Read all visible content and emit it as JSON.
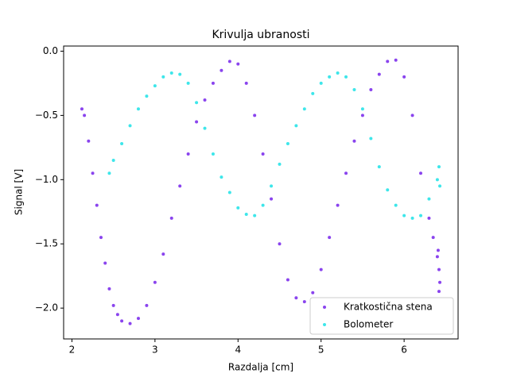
{
  "chart_data": {
    "type": "scatter",
    "title": "Krivulja ubranosti",
    "x_label": "Razdalja [cm]",
    "y_label": "Signal [V]",
    "xlim": [
      1.9,
      6.65
    ],
    "ylim": [
      -2.24,
      0.04
    ],
    "xticks": [
      2,
      3,
      4,
      5,
      6
    ],
    "yticks": [
      {
        "value": 0,
        "label": "0.0"
      },
      {
        "value": -0.5,
        "label": "−0.5"
      },
      {
        "value": -1,
        "label": "−1.0"
      },
      {
        "value": -1.5,
        "label": "−1.5"
      },
      {
        "value": -2,
        "label": "−2.0"
      }
    ],
    "legend": "lower right",
    "series": [
      {
        "name": "Kratkostična stena",
        "color": "#8a44ee",
        "x": [
          2.12,
          2.15,
          2.2,
          2.25,
          2.3,
          2.35,
          2.4,
          2.45,
          2.5,
          2.55,
          2.6,
          2.7,
          2.8,
          2.9,
          3.0,
          3.1,
          3.2,
          3.3,
          3.4,
          3.5,
          3.6,
          3.7,
          3.8,
          3.9,
          4.0,
          4.1,
          4.2,
          4.3,
          4.4,
          4.5,
          4.6,
          4.7,
          4.8,
          4.9,
          5.0,
          5.1,
          5.2,
          5.3,
          5.4,
          5.5,
          5.6,
          5.7,
          5.8,
          5.9,
          6.0,
          6.1,
          6.2,
          6.3,
          6.35,
          6.4,
          6.42,
          6.43,
          6.42,
          6.41
        ],
        "values": [
          -0.45,
          -0.5,
          -0.7,
          -0.95,
          -1.2,
          -1.45,
          -1.65,
          -1.85,
          -1.98,
          -2.05,
          -2.1,
          -2.12,
          -2.08,
          -1.98,
          -1.8,
          -1.58,
          -1.3,
          -1.05,
          -0.8,
          -0.55,
          -0.38,
          -0.25,
          -0.15,
          -0.08,
          -0.1,
          -0.25,
          -0.5,
          -0.8,
          -1.15,
          -1.5,
          -1.78,
          -1.92,
          -1.95,
          -1.88,
          -1.7,
          -1.45,
          -1.2,
          -0.95,
          -0.7,
          -0.5,
          -0.3,
          -0.18,
          -0.08,
          -0.07,
          -0.2,
          -0.5,
          -0.95,
          -1.3,
          -1.45,
          -1.6,
          -1.7,
          -1.8,
          -1.87,
          -1.55
        ]
      },
      {
        "name": "Bolometer",
        "color": "#3ee6ea",
        "x": [
          2.45,
          2.5,
          2.6,
          2.7,
          2.8,
          2.9,
          3.0,
          3.1,
          3.2,
          3.3,
          3.4,
          3.5,
          3.6,
          3.7,
          3.8,
          3.9,
          4.0,
          4.1,
          4.2,
          4.3,
          4.4,
          4.5,
          4.6,
          4.7,
          4.8,
          4.9,
          5.0,
          5.1,
          5.2,
          5.3,
          5.4,
          5.5,
          5.6,
          5.7,
          5.8,
          5.9,
          6.0,
          6.1,
          6.2,
          6.3,
          6.4,
          6.42,
          6.43
        ],
        "values": [
          -0.95,
          -0.85,
          -0.72,
          -0.58,
          -0.45,
          -0.35,
          -0.27,
          -0.2,
          -0.17,
          -0.18,
          -0.25,
          -0.4,
          -0.6,
          -0.8,
          -0.98,
          -1.1,
          -1.22,
          -1.27,
          -1.28,
          -1.2,
          -1.05,
          -0.88,
          -0.72,
          -0.58,
          -0.45,
          -0.33,
          -0.25,
          -0.2,
          -0.17,
          -0.2,
          -0.3,
          -0.45,
          -0.68,
          -0.9,
          -1.08,
          -1.2,
          -1.28,
          -1.3,
          -1.28,
          -1.15,
          -1.0,
          -0.9,
          -1.05
        ]
      }
    ]
  }
}
